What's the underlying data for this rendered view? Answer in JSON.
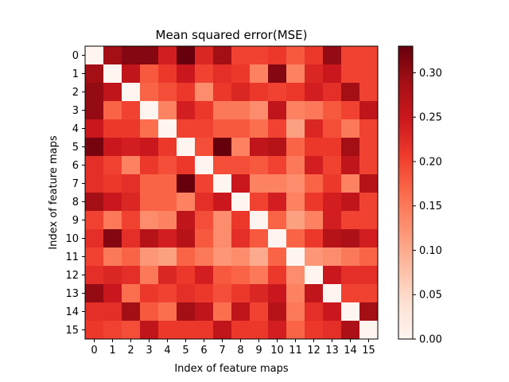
{
  "chart_data": {
    "type": "heatmap",
    "title": "Mean squared error(MSE)",
    "xlabel": "Index of feature maps",
    "ylabel": "Index of feature maps",
    "x_categories": [
      "0",
      "1",
      "2",
      "3",
      "4",
      "5",
      "6",
      "7",
      "8",
      "9",
      "10",
      "11",
      "12",
      "13",
      "14",
      "15"
    ],
    "y_categories": [
      "0",
      "1",
      "2",
      "3",
      "4",
      "5",
      "6",
      "7",
      "8",
      "9",
      "10",
      "11",
      "12",
      "13",
      "14",
      "15"
    ],
    "values": [
      [
        0.0,
        0.29,
        0.31,
        0.31,
        0.24,
        0.33,
        0.23,
        0.29,
        0.2,
        0.2,
        0.21,
        0.18,
        0.21,
        0.3,
        0.2,
        0.2
      ],
      [
        0.29,
        0.0,
        0.26,
        0.18,
        0.21,
        0.25,
        0.2,
        0.22,
        0.21,
        0.14,
        0.31,
        0.14,
        0.23,
        0.25,
        0.2,
        0.2
      ],
      [
        0.3,
        0.26,
        0.0,
        0.17,
        0.19,
        0.21,
        0.13,
        0.21,
        0.23,
        0.21,
        0.2,
        0.21,
        0.24,
        0.22,
        0.29,
        0.2
      ],
      [
        0.3,
        0.17,
        0.2,
        0.0,
        0.14,
        0.24,
        0.21,
        0.15,
        0.15,
        0.13,
        0.26,
        0.14,
        0.15,
        0.18,
        0.2,
        0.26
      ],
      [
        0.25,
        0.21,
        0.21,
        0.16,
        0.0,
        0.2,
        0.2,
        0.18,
        0.18,
        0.16,
        0.2,
        0.11,
        0.23,
        0.19,
        0.15,
        0.2
      ],
      [
        0.32,
        0.25,
        0.24,
        0.25,
        0.21,
        0.0,
        0.19,
        0.33,
        0.14,
        0.26,
        0.27,
        0.17,
        0.21,
        0.21,
        0.29,
        0.2
      ],
      [
        0.22,
        0.2,
        0.14,
        0.21,
        0.19,
        0.21,
        0.0,
        0.19,
        0.19,
        0.18,
        0.2,
        0.15,
        0.24,
        0.2,
        0.26,
        0.2
      ],
      [
        0.22,
        0.21,
        0.22,
        0.17,
        0.17,
        0.33,
        0.2,
        0.0,
        0.25,
        0.14,
        0.14,
        0.13,
        0.17,
        0.21,
        0.14,
        0.27
      ],
      [
        0.29,
        0.25,
        0.23,
        0.17,
        0.17,
        0.14,
        0.22,
        0.25,
        0.0,
        0.2,
        0.24,
        0.14,
        0.21,
        0.24,
        0.26,
        0.2
      ],
      [
        0.2,
        0.15,
        0.2,
        0.13,
        0.14,
        0.26,
        0.19,
        0.13,
        0.21,
        0.0,
        0.17,
        0.11,
        0.14,
        0.24,
        0.2,
        0.2
      ],
      [
        0.22,
        0.31,
        0.22,
        0.27,
        0.24,
        0.27,
        0.18,
        0.13,
        0.22,
        0.18,
        0.0,
        0.17,
        0.21,
        0.27,
        0.28,
        0.24
      ],
      [
        0.2,
        0.15,
        0.17,
        0.12,
        0.11,
        0.17,
        0.15,
        0.12,
        0.13,
        0.1,
        0.17,
        0.0,
        0.12,
        0.13,
        0.15,
        0.17
      ],
      [
        0.22,
        0.23,
        0.22,
        0.15,
        0.23,
        0.21,
        0.24,
        0.18,
        0.17,
        0.15,
        0.21,
        0.13,
        0.0,
        0.25,
        0.22,
        0.22
      ],
      [
        0.3,
        0.25,
        0.16,
        0.21,
        0.2,
        0.22,
        0.21,
        0.19,
        0.21,
        0.23,
        0.25,
        0.14,
        0.26,
        0.0,
        0.2,
        0.2
      ],
      [
        0.22,
        0.22,
        0.29,
        0.18,
        0.16,
        0.29,
        0.26,
        0.16,
        0.26,
        0.2,
        0.27,
        0.15,
        0.22,
        0.25,
        0.0,
        0.29
      ],
      [
        0.21,
        0.2,
        0.19,
        0.26,
        0.21,
        0.21,
        0.21,
        0.26,
        0.21,
        0.21,
        0.24,
        0.17,
        0.21,
        0.22,
        0.28,
        0.0
      ]
    ],
    "colormap": "Reds",
    "colorbar": {
      "range": [
        0.0,
        0.33
      ],
      "ticks": [
        "0.00",
        "0.05",
        "0.10",
        "0.15",
        "0.20",
        "0.25",
        "0.30"
      ]
    },
    "grid": false,
    "legend": "colorbar-right"
  }
}
